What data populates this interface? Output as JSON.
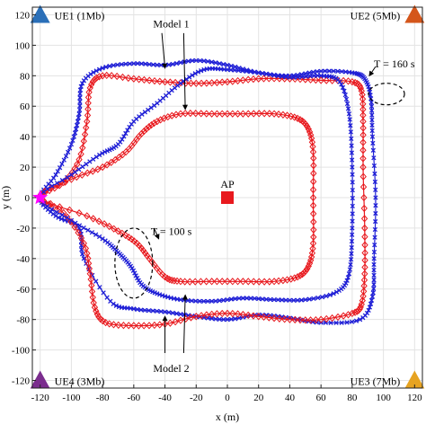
{
  "chart_data": {
    "type": "scatter",
    "xlabel": "x (m)",
    "ylabel": "y (m)",
    "xlim": [
      -125,
      125
    ],
    "ylim": [
      -125,
      125
    ],
    "xticks": [
      -120,
      -100,
      -80,
      -60,
      -40,
      -20,
      0,
      20,
      40,
      60,
      80,
      100,
      120
    ],
    "yticks": [
      -120,
      -100,
      -80,
      -60,
      -40,
      -20,
      0,
      20,
      40,
      60,
      80,
      100,
      120
    ],
    "grid": true,
    "start_point": {
      "x": -120,
      "y": 0,
      "color": "#ff00ff"
    },
    "ap": {
      "label": "AP",
      "x": 0,
      "y": 0,
      "color": "#e8191e"
    },
    "ues": [
      {
        "label": "UE1 (1Mb)",
        "x": -120,
        "y": 120,
        "color": "#2a6fb8"
      },
      {
        "label": "UE2 (5Mb)",
        "x": 120,
        "y": 120,
        "color": "#d4561b"
      },
      {
        "label": "UE3 (7Mb)",
        "x": 120,
        "y": -120,
        "color": "#e6a321"
      },
      {
        "label": "UE4 (3Mb)",
        "x": -120,
        "y": -120,
        "color": "#7b2d8e"
      }
    ],
    "series": [
      {
        "marker": "x",
        "color": "#1f1fd6",
        "points": [
          [
            -120,
            0
          ],
          [
            -110,
            15
          ],
          [
            -100,
            35
          ],
          [
            -95,
            55
          ],
          [
            -93,
            75
          ],
          [
            -80,
            85
          ],
          [
            -60,
            88
          ],
          [
            -40,
            87
          ],
          [
            -20,
            90
          ],
          [
            0,
            87
          ],
          [
            20,
            82
          ],
          [
            40,
            80
          ],
          [
            60,
            83
          ],
          [
            80,
            82
          ],
          [
            88,
            78
          ],
          [
            92,
            65
          ],
          [
            93,
            40
          ],
          [
            95,
            0
          ],
          [
            94,
            -40
          ],
          [
            93,
            -65
          ],
          [
            85,
            -80
          ],
          [
            60,
            -82
          ],
          [
            40,
            -79
          ],
          [
            20,
            -77
          ],
          [
            0,
            -80
          ],
          [
            -20,
            -78
          ],
          [
            -40,
            -75
          ],
          [
            -60,
            -73
          ],
          [
            -75,
            -68
          ],
          [
            -92,
            -40
          ],
          [
            -95,
            -20
          ],
          [
            -110,
            -12
          ],
          [
            -120,
            0
          ]
        ]
      },
      {
        "marker": "diamond",
        "color": "#e8191e",
        "points": [
          [
            -120,
            0
          ],
          [
            -105,
            10
          ],
          [
            -95,
            25
          ],
          [
            -90,
            50
          ],
          [
            -88,
            72
          ],
          [
            -80,
            80
          ],
          [
            -60,
            78
          ],
          [
            -40,
            76
          ],
          [
            -20,
            75
          ],
          [
            0,
            76
          ],
          [
            20,
            78
          ],
          [
            40,
            78
          ],
          [
            60,
            77
          ],
          [
            80,
            76
          ],
          [
            86,
            70
          ],
          [
            87,
            50
          ],
          [
            87,
            20
          ],
          [
            88,
            -20
          ],
          [
            88,
            -50
          ],
          [
            86,
            -70
          ],
          [
            80,
            -76
          ],
          [
            60,
            -80
          ],
          [
            40,
            -80
          ],
          [
            20,
            -78
          ],
          [
            0,
            -76
          ],
          [
            -20,
            -78
          ],
          [
            -40,
            -83
          ],
          [
            -60,
            -84
          ],
          [
            -78,
            -82
          ],
          [
            -85,
            -72
          ],
          [
            -88,
            -50
          ],
          [
            -92,
            -30
          ],
          [
            -105,
            -10
          ],
          [
            -120,
            0
          ]
        ]
      },
      {
        "marker": "diamond",
        "color": "#e8191e",
        "points": [
          [
            -120,
            0
          ],
          [
            -100,
            12
          ],
          [
            -80,
            20
          ],
          [
            -65,
            30
          ],
          [
            -55,
            42
          ],
          [
            -45,
            50
          ],
          [
            -30,
            55
          ],
          [
            -10,
            55
          ],
          [
            10,
            55
          ],
          [
            30,
            55
          ],
          [
            45,
            52
          ],
          [
            52,
            45
          ],
          [
            55,
            30
          ],
          [
            55,
            0
          ],
          [
            55,
            -30
          ],
          [
            52,
            -45
          ],
          [
            45,
            -52
          ],
          [
            30,
            -55
          ],
          [
            10,
            -55
          ],
          [
            -10,
            -55
          ],
          [
            -30,
            -55
          ],
          [
            -40,
            -52
          ],
          [
            -50,
            -40
          ],
          [
            -58,
            -30
          ],
          [
            -70,
            -22
          ],
          [
            -90,
            -12
          ],
          [
            -120,
            0
          ]
        ]
      },
      {
        "marker": "x",
        "color": "#1f1fd6",
        "points": [
          [
            -120,
            0
          ],
          [
            -100,
            15
          ],
          [
            -82,
            28
          ],
          [
            -70,
            35
          ],
          [
            -60,
            50
          ],
          [
            -45,
            62
          ],
          [
            -30,
            75
          ],
          [
            -15,
            84
          ],
          [
            0,
            84
          ],
          [
            20,
            82
          ],
          [
            40,
            79
          ],
          [
            60,
            80
          ],
          [
            72,
            76
          ],
          [
            78,
            55
          ],
          [
            80,
            20
          ],
          [
            80,
            -20
          ],
          [
            78,
            -50
          ],
          [
            70,
            -62
          ],
          [
            50,
            -67
          ],
          [
            30,
            -67
          ],
          [
            10,
            -66
          ],
          [
            -10,
            -68
          ],
          [
            -30,
            -67
          ],
          [
            -45,
            -63
          ],
          [
            -55,
            -57
          ],
          [
            -62,
            -45
          ],
          [
            -70,
            -36
          ],
          [
            -80,
            -27
          ],
          [
            -100,
            -15
          ],
          [
            -120,
            0
          ]
        ]
      }
    ],
    "annotations": [
      {
        "text": "Model 1",
        "x": -36,
        "y": 114
      },
      {
        "text": "Model 2",
        "x": -36,
        "y": -112
      },
      {
        "text": "T = 160 s",
        "x": 107,
        "y": 88
      },
      {
        "text": "T = 100 s",
        "x": -36,
        "y": -22
      }
    ]
  }
}
